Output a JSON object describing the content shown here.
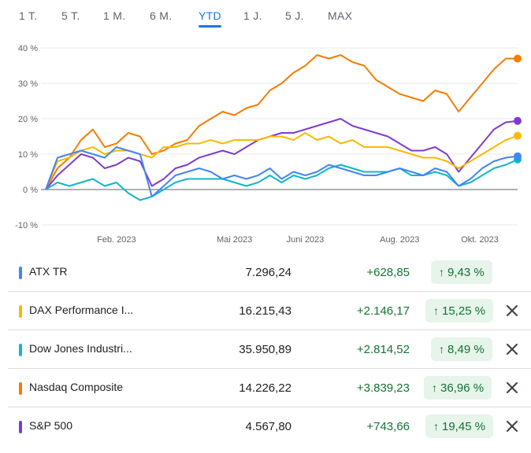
{
  "tabs": [
    {
      "label": "1 T.",
      "active": false
    },
    {
      "label": "5 T.",
      "active": false
    },
    {
      "label": "1 M.",
      "active": false
    },
    {
      "label": "6 M.",
      "active": false
    },
    {
      "label": "YTD",
      "active": true
    },
    {
      "label": "1 J.",
      "active": false
    },
    {
      "label": "5 J.",
      "active": false
    },
    {
      "label": "MAX",
      "active": false
    }
  ],
  "chart_data": {
    "type": "line",
    "ylim": [
      -10,
      40
    ],
    "yticks": [
      "40 %",
      "30 %",
      "20 %",
      "10 %",
      "0 %",
      "-10 %"
    ],
    "ytick_values": [
      40,
      30,
      20,
      10,
      0,
      -10
    ],
    "xticks": [
      "Feb. 2023",
      "Mai 2023",
      "Juni 2023",
      "Aug. 2023",
      "Okt. 2023"
    ],
    "xtick_positions": [
      0.15,
      0.4,
      0.55,
      0.75,
      0.92
    ],
    "grid": "horizontal",
    "zero_line": true,
    "series": [
      {
        "name": "Nasdaq Composite",
        "color": "#f57c00",
        "values": [
          0,
          6,
          9,
          14,
          17,
          12,
          13,
          16,
          15,
          10,
          11,
          13,
          14,
          18,
          20,
          22,
          21,
          23,
          24,
          28,
          30,
          33,
          35,
          38,
          37,
          38,
          36,
          35,
          31,
          29,
          27,
          26,
          25,
          28,
          27,
          22,
          26,
          30,
          34,
          37,
          37
        ]
      },
      {
        "name": "S&P 500",
        "color": "#7e3ccf",
        "values": [
          0,
          4,
          7,
          10,
          9,
          6,
          7,
          9,
          8,
          1,
          3,
          6,
          7,
          9,
          10,
          11,
          10,
          12,
          14,
          15,
          16,
          16,
          17,
          18,
          19,
          20,
          18,
          17,
          16,
          15,
          13,
          11,
          11,
          12,
          10,
          5,
          9,
          13,
          17,
          19,
          19.4
        ]
      },
      {
        "name": "DAX Performance I...",
        "color": "#f9ba00",
        "values": [
          0,
          8,
          9,
          11,
          12,
          10,
          11,
          11,
          10,
          9,
          12,
          12,
          13,
          13,
          14,
          13,
          14,
          14,
          14,
          15,
          15,
          14,
          16,
          14,
          15,
          13,
          14,
          12,
          12,
          12,
          11,
          10,
          9,
          9,
          8,
          6,
          8,
          10,
          12,
          14,
          15.2
        ]
      },
      {
        "name": "Dow Jones Industri...",
        "color": "#12b5cb",
        "values": [
          0,
          2,
          1,
          2,
          3,
          1,
          2,
          -1,
          -3,
          -2,
          0,
          2,
          3,
          3,
          3,
          3,
          2,
          1,
          2,
          4,
          2,
          4,
          3,
          4,
          6,
          7,
          6,
          5,
          5,
          5,
          6,
          4,
          4,
          5,
          4,
          1,
          2,
          4,
          6,
          7,
          8.5
        ]
      },
      {
        "name": "ATX TR",
        "color": "#4285f4",
        "values": [
          0,
          9,
          10,
          11,
          10,
          9,
          12,
          11,
          10,
          -2,
          1,
          4,
          5,
          6,
          5,
          3,
          4,
          3,
          4,
          6,
          3,
          5,
          4,
          5,
          7,
          6,
          5,
          4,
          4,
          5,
          6,
          5,
          4,
          6,
          5,
          1,
          3,
          6,
          8,
          9,
          9.4
        ]
      }
    ]
  },
  "rows": [
    {
      "name": "ATX TR",
      "color": "#4285f4",
      "price": "7.296,24",
      "change": "+628,85",
      "percent": "9,43 %",
      "removable": false
    },
    {
      "name": "DAX Performance I...",
      "color": "#f9ba00",
      "price": "16.215,43",
      "change": "+2.146,17",
      "percent": "15,25 %",
      "removable": true
    },
    {
      "name": "Dow Jones Industri...",
      "color": "#12b5cb",
      "price": "35.950,89",
      "change": "+2.814,52",
      "percent": "8,49 %",
      "removable": true
    },
    {
      "name": "Nasdaq Composite",
      "color": "#f57c00",
      "price": "14.226,22",
      "change": "+3.839,23",
      "percent": "36,96 %",
      "removable": true
    },
    {
      "name": "S&P 500",
      "color": "#7e3ccf",
      "price": "4.567,80",
      "change": "+743,66",
      "percent": "19,45 %",
      "removable": true
    }
  ],
  "icons": {
    "up_arrow": "arrow-up-icon",
    "close": "close-icon"
  }
}
